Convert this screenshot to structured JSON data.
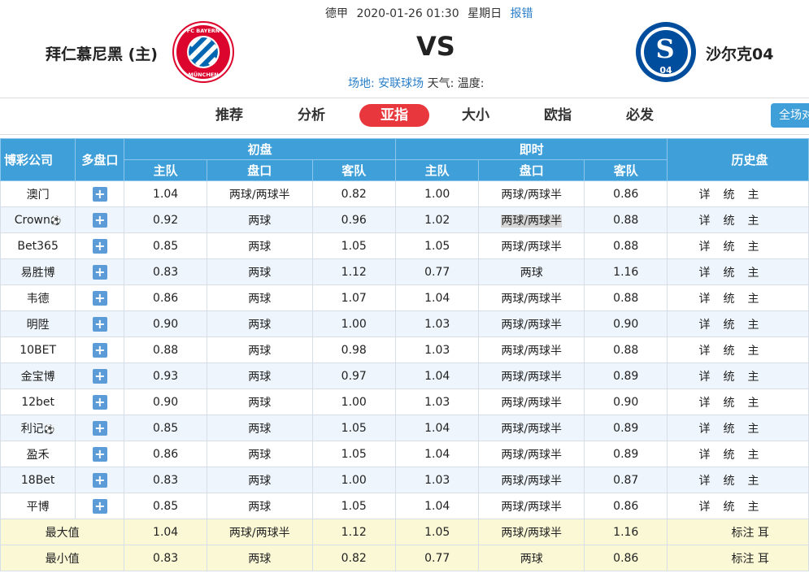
{
  "match": {
    "league": "德甲",
    "datetime": "2020-01-26 01:30",
    "weekday": "星期日",
    "report_label": "报错",
    "home_team": "拜仁慕尼黑 (主)",
    "away_team": "沙尔克04",
    "vs_label": "VS",
    "venue_label": "场地:",
    "venue": "安联球场",
    "weather_label": "天气:",
    "temperature_label": "温度:",
    "home_logo_text": "FC BAYERN MÜNCHEN",
    "away_logo_text": "S04"
  },
  "tabs": [
    "推荐",
    "分析",
    "亚指",
    "大小",
    "欧指",
    "必发"
  ],
  "active_tab": "亚指",
  "fullscreen_label": "全场对",
  "table": {
    "col_company": "博彩公司",
    "col_multi": "多盘口",
    "group_initial": "初盘",
    "group_live": "即时",
    "group_history": "历史盘",
    "sub_home": "主队",
    "sub_line": "盘口",
    "sub_away": "客队",
    "history_detail": "详",
    "history_stats": "统",
    "history_home": "主",
    "rows": [
      {
        "company": "澳门",
        "i_home": "1.04",
        "i_line": "两球/两球半",
        "i_away": "0.82",
        "l_home": "1.00",
        "l_line": "两球/两球半",
        "l_away": "0.86"
      },
      {
        "company": "Crown",
        "ball": "⚽",
        "i_home": "0.92",
        "i_line": "两球",
        "i_away": "0.96",
        "l_home": "1.02",
        "l_line": "两球/两球半",
        "l_away": "0.88",
        "highlight": true
      },
      {
        "company": "Bet365",
        "i_home": "0.85",
        "i_line": "两球",
        "i_away": "1.05",
        "l_home": "1.05",
        "l_line": "两球/两球半",
        "l_away": "0.88"
      },
      {
        "company": "易胜博",
        "i_home": "0.83",
        "i_line": "两球",
        "i_away": "1.12",
        "l_home": "0.77",
        "l_line": "两球",
        "l_away": "1.16"
      },
      {
        "company": "韦德",
        "i_home": "0.86",
        "i_line": "两球",
        "i_away": "1.07",
        "l_home": "1.04",
        "l_line": "两球/两球半",
        "l_away": "0.88"
      },
      {
        "company": "明陞",
        "i_home": "0.90",
        "i_line": "两球",
        "i_away": "1.00",
        "l_home": "1.03",
        "l_line": "两球/两球半",
        "l_away": "0.90"
      },
      {
        "company": "10BET",
        "i_home": "0.88",
        "i_line": "两球",
        "i_away": "0.98",
        "l_home": "1.03",
        "l_line": "两球/两球半",
        "l_away": "0.88"
      },
      {
        "company": "金宝博",
        "i_home": "0.93",
        "i_line": "两球",
        "i_away": "0.97",
        "l_home": "1.04",
        "l_line": "两球/两球半",
        "l_away": "0.89"
      },
      {
        "company": "12bet",
        "i_home": "0.90",
        "i_line": "两球",
        "i_away": "1.00",
        "l_home": "1.03",
        "l_line": "两球/两球半",
        "l_away": "0.90"
      },
      {
        "company": "利记",
        "ball": "⚽",
        "i_home": "0.85",
        "i_line": "两球",
        "i_away": "1.05",
        "l_home": "1.04",
        "l_line": "两球/两球半",
        "l_away": "0.89"
      },
      {
        "company": "盈禾",
        "i_home": "0.86",
        "i_line": "两球",
        "i_away": "1.05",
        "l_home": "1.04",
        "l_line": "两球/两球半",
        "l_away": "0.89"
      },
      {
        "company": "18Bet",
        "i_home": "0.83",
        "i_line": "两球",
        "i_away": "1.00",
        "l_home": "1.03",
        "l_line": "两球/两球半",
        "l_away": "0.87"
      },
      {
        "company": "平博",
        "i_home": "0.85",
        "i_line": "两球",
        "i_away": "1.05",
        "l_home": "1.04",
        "l_line": "两球/两球半",
        "l_away": "0.86"
      }
    ],
    "summary": [
      {
        "label": "最大值",
        "i_home": "1.04",
        "i_line": "两球/两球半",
        "i_away": "1.12",
        "l_home": "1.05",
        "l_line": "两球/两球半",
        "l_away": "1.16",
        "note": "标注 耳"
      },
      {
        "label": "最小值",
        "i_home": "0.83",
        "i_line": "两球",
        "i_away": "0.82",
        "l_home": "0.77",
        "l_line": "两球",
        "l_away": "0.86",
        "note": "标注 耳"
      }
    ]
  }
}
